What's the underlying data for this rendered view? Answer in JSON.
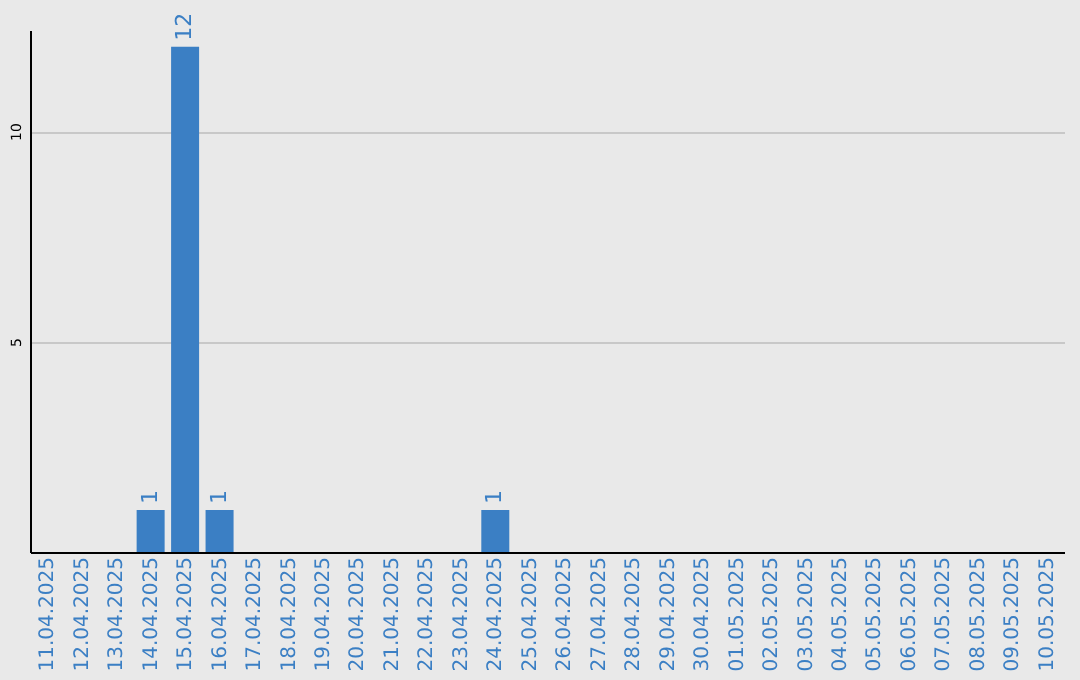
{
  "chart_data": {
    "type": "bar",
    "categories": [
      "11.04.2025",
      "12.04.2025",
      "13.04.2025",
      "14.04.2025",
      "15.04.2025",
      "16.04.2025",
      "17.04.2025",
      "18.04.2025",
      "19.04.2025",
      "20.04.2025",
      "21.04.2025",
      "22.04.2025",
      "23.04.2025",
      "24.04.2025",
      "25.04.2025",
      "26.04.2025",
      "27.04.2025",
      "28.04.2025",
      "29.04.2025",
      "30.04.2025",
      "01.05.2025",
      "02.05.2025",
      "03.05.2025",
      "04.05.2025",
      "05.05.2025",
      "06.05.2025",
      "07.05.2025",
      "08.05.2025",
      "09.05.2025",
      "10.05.2025"
    ],
    "values": [
      0,
      0,
      0,
      1,
      12,
      1,
      0,
      0,
      0,
      0,
      0,
      0,
      0,
      1,
      0,
      0,
      0,
      0,
      0,
      0,
      0,
      0,
      0,
      0,
      0,
      0,
      0,
      0,
      0,
      0
    ],
    "value_labels": [
      null,
      null,
      null,
      "1",
      "12",
      "1",
      null,
      null,
      null,
      null,
      null,
      null,
      null,
      "1",
      null,
      null,
      null,
      null,
      null,
      null,
      null,
      null,
      null,
      null,
      null,
      null,
      null,
      null,
      null,
      null
    ],
    "color": "#3b7fc4",
    "ylim": [
      0,
      12.4
    ],
    "yticks": [
      5,
      10
    ],
    "grid": "y"
  }
}
